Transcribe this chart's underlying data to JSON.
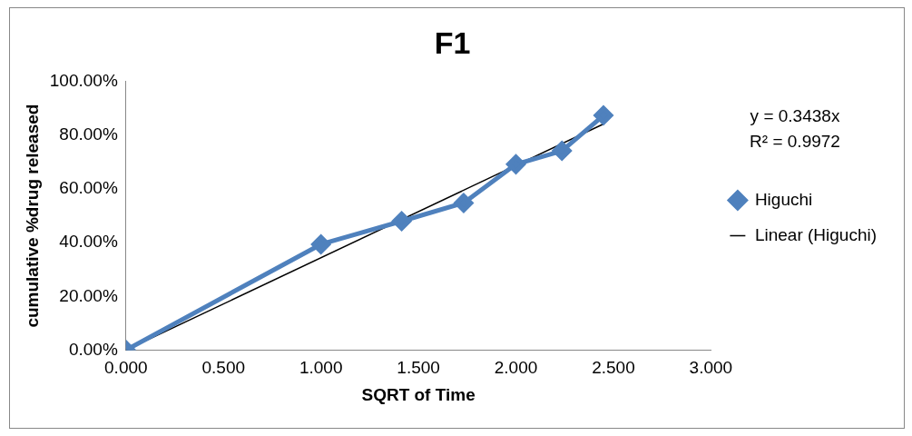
{
  "chart_data": {
    "type": "line",
    "title": "F1",
    "xlabel": "SQRT of Time",
    "ylabel": "cumulative %drug released",
    "xlim": [
      0,
      3
    ],
    "xticks": [
      {
        "value": 0,
        "label": "0.000"
      },
      {
        "value": 0.5,
        "label": "0.500"
      },
      {
        "value": 1,
        "label": "1.000"
      },
      {
        "value": 1.5,
        "label": "1.500"
      },
      {
        "value": 2,
        "label": "2.000"
      },
      {
        "value": 2.5,
        "label": "2.500"
      },
      {
        "value": 3,
        "label": "3.000"
      }
    ],
    "ylim": [
      0,
      100
    ],
    "yticks": [
      {
        "value": 0,
        "label": "0.00%"
      },
      {
        "value": 20,
        "label": "20.00%"
      },
      {
        "value": 40,
        "label": "40.00%"
      },
      {
        "value": 60,
        "label": "60.00%"
      },
      {
        "value": 80,
        "label": "80.00%"
      },
      {
        "value": 100,
        "label": "100.00%"
      }
    ],
    "grid": false,
    "legend": "right",
    "annotations": [
      "y = 0.3438x",
      "R² = 0.9972"
    ],
    "series": [
      {
        "name": "Higuchi",
        "marker": "diamond",
        "color": "#4f81bd",
        "x": [
          0,
          1,
          1.414,
          1.732,
          2,
          2.236,
          2.449
        ],
        "values": [
          0,
          39.4,
          48.0,
          54.8,
          69.2,
          74.2,
          87.4
        ]
      },
      {
        "name": "Linear (Higuchi)",
        "marker": "none",
        "color": "#000000",
        "x": [
          0,
          2.449
        ],
        "values": [
          0,
          84.2
        ]
      }
    ]
  }
}
